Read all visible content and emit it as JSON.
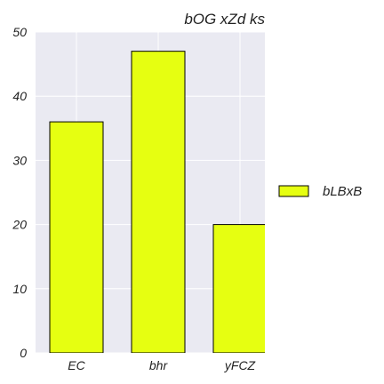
{
  "colors": {
    "plot_background": "#eaeaf2",
    "grid": "#ffffff",
    "bar_fill": "#e6ff11",
    "bar_edge": "#000000",
    "text": "#222222"
  },
  "chart_data": {
    "type": "bar",
    "title": "bOG xZd ks",
    "xlabel": "",
    "ylabel": "",
    "categories": [
      "EC",
      "bhr",
      "yFCZ"
    ],
    "series": [
      {
        "name": "bLBxB",
        "values": [
          36,
          47,
          20
        ]
      }
    ],
    "ylim": [
      0,
      50
    ],
    "yticks": [
      0,
      10,
      20,
      30,
      40,
      50
    ],
    "grid": true,
    "legend": {
      "placement": "right-outside",
      "entries": [
        "bLBxB"
      ]
    }
  }
}
